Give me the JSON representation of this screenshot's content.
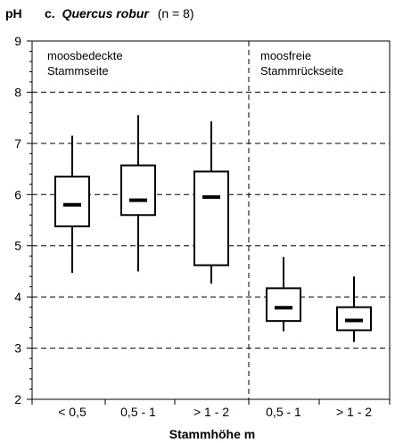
{
  "chart_data": {
    "type": "boxplot",
    "title_prefix": "c.",
    "title_species": "Quercus robur",
    "title_n": "(n = 8)",
    "ylabel": "pH",
    "xlabel": "Stammhöhe m",
    "ylim": [
      2,
      9
    ],
    "yticks": [
      2,
      3,
      4,
      5,
      6,
      7,
      8,
      9
    ],
    "grid": "dashed horizontal",
    "groups": [
      {
        "label_line1": "moosbedeckte",
        "label_line2": "Stammseite"
      },
      {
        "label_line1": "moosfreie",
        "label_line2": "Stammrückseite"
      }
    ],
    "categories": [
      "< 0,5",
      "0,5 - 1",
      "> 1 - 2",
      "0,5 - 1",
      "> 1 - 2"
    ],
    "boxes": [
      {
        "min": 4.47,
        "q1": 5.38,
        "median": 5.8,
        "q3": 6.35,
        "max": 7.15
      },
      {
        "min": 4.5,
        "q1": 5.6,
        "median": 5.89,
        "q3": 6.57,
        "max": 7.55
      },
      {
        "min": 4.26,
        "q1": 4.62,
        "median": 5.95,
        "q3": 6.45,
        "max": 7.43
      },
      {
        "min": 3.33,
        "q1": 3.53,
        "median": 3.79,
        "q3": 4.17,
        "max": 4.78
      },
      {
        "min": 3.12,
        "q1": 3.35,
        "median": 3.54,
        "q3": 3.8,
        "max": 4.4
      }
    ]
  }
}
